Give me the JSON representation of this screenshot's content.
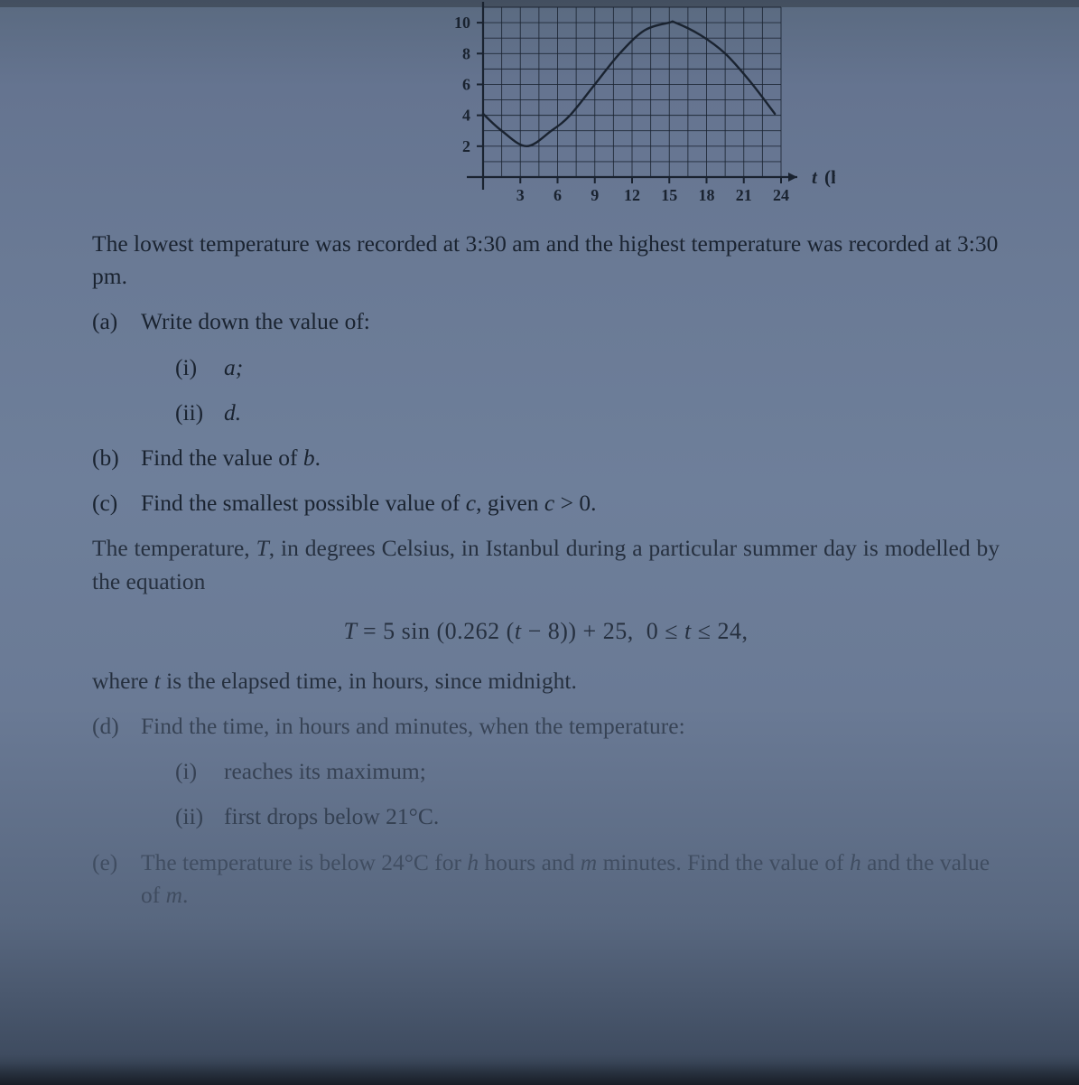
{
  "chart": {
    "type": "line",
    "x_ticks": [
      3,
      6,
      9,
      12,
      15,
      18,
      21,
      24
    ],
    "y_ticks": [
      2,
      4,
      6,
      8,
      10
    ],
    "xlim": [
      0,
      24
    ],
    "ylim": [
      0,
      11
    ],
    "x_axis_label": "t (hours)",
    "axis_color": "#1a2330",
    "grid_color": "#1a2330",
    "grid_alpha": 0.9,
    "line_color": "#1a2330",
    "line_width": 2.4,
    "tick_fontsize": 18,
    "axis_label_fontsize": 21,
    "grid_step_x": 1.5,
    "grid_step_y": 1,
    "curve": [
      {
        "t": 0.0,
        "T": 4.1
      },
      {
        "t": 1.5,
        "T": 3.0
      },
      {
        "t": 3.5,
        "T": 2.0
      },
      {
        "t": 5.5,
        "T": 3.0
      },
      {
        "t": 7.0,
        "T": 4.0
      },
      {
        "t": 9.0,
        "T": 6.0
      },
      {
        "t": 11.0,
        "T": 8.0
      },
      {
        "t": 13.0,
        "T": 9.5
      },
      {
        "t": 15.0,
        "T": 10.0
      },
      {
        "t": 15.5,
        "T": 10.0
      },
      {
        "t": 17.5,
        "T": 9.2
      },
      {
        "t": 19.5,
        "T": 8.0
      },
      {
        "t": 21.5,
        "T": 6.2
      },
      {
        "t": 23.5,
        "T": 4.1
      }
    ]
  },
  "intro": "The lowest temperature was recorded at 3:30 am and the highest temperature was recorded at 3:30 pm.",
  "a": {
    "label": "(a)",
    "text": "Write down the value of:",
    "i": {
      "label": "(i)",
      "text": "a;"
    },
    "ii": {
      "label": "(ii)",
      "text": "d."
    }
  },
  "b": {
    "label": "(b)",
    "text": "Find the value of b."
  },
  "c": {
    "label": "(c)",
    "text": "Find the smallest possible value of c, given c > 0."
  },
  "istanbul": "The temperature, T, in degrees Celsius, in Istanbul during a particular summer day is modelled by the equation",
  "equation": "T = 5 sin (0.262 (t − 8)) + 25,   0 ≤ t ≤ 24,",
  "where": "where t is the elapsed time, in hours, since midnight.",
  "d": {
    "label": "(d)",
    "text": "Find the time, in hours and minutes, when the temperature:",
    "i": {
      "label": "(i)",
      "text": "reaches its maximum;"
    },
    "ii": {
      "label": "(ii)",
      "text": "first drops below 21°C."
    }
  },
  "e": {
    "label": "(e)",
    "text": "The temperature is below 24°C for h hours and m minutes. Find the value of h and the value of m."
  }
}
